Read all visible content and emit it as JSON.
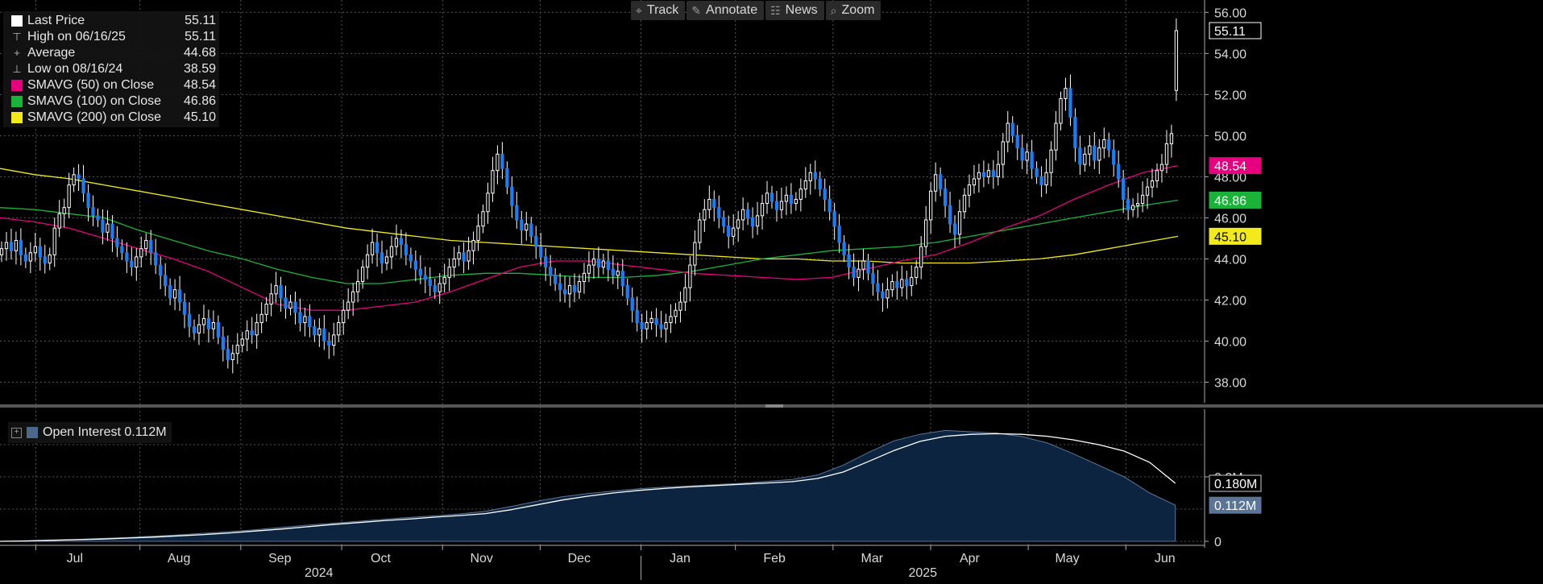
{
  "toolbar": {
    "buttons": [
      {
        "label": "Track",
        "icon": "crosshair-icon",
        "glyph": "⌖"
      },
      {
        "label": "Annotate",
        "icon": "pencil-icon",
        "glyph": "✎"
      },
      {
        "label": "News",
        "icon": "news-icon",
        "glyph": "☷"
      },
      {
        "label": "Zoom",
        "icon": "magnifier-icon",
        "glyph": "⌕"
      }
    ]
  },
  "legend": {
    "rows": [
      {
        "label": "Last Price",
        "value": "55.11",
        "color": "#ffffff",
        "kind": "box"
      },
      {
        "label": "High on 06/16/25",
        "value": "55.11",
        "color": "#bbbbbb",
        "kind": "glyph",
        "glyph": "⊤"
      },
      {
        "label": "Average",
        "value": "44.68",
        "color": "#bbbbbb",
        "kind": "glyph",
        "glyph": "+"
      },
      {
        "label": "Low on 08/16/24",
        "value": "38.59",
        "color": "#bbbbbb",
        "kind": "glyph",
        "glyph": "⊥"
      },
      {
        "label": "SMAVG (50)  on Close",
        "value": "48.54",
        "color": "#e6007e",
        "kind": "box"
      },
      {
        "label": "SMAVG (100)  on Close",
        "value": "46.86",
        "color": "#19b33a",
        "kind": "box"
      },
      {
        "label": "SMAVG (200)  on Close",
        "value": "45.10",
        "color": "#f2ea1a",
        "kind": "box"
      }
    ]
  },
  "lower_legend": {
    "label": "Open Interest 0.112M",
    "color": "#4a6a8c"
  },
  "chart_data": [
    {
      "type": "candlestick",
      "x_ticks": [
        "Jul",
        "Aug",
        "Sep",
        "Oct",
        "Nov",
        "Dec",
        "Jan",
        "Feb",
        "Mar",
        "Apr",
        "May",
        "Jun"
      ],
      "year_labels": [
        "2024",
        "2025"
      ],
      "ylim": [
        37,
        56.6
      ],
      "y_ticks": [
        "38.00",
        "40.00",
        "42.00",
        "44.00",
        "46.00",
        "48.00",
        "50.00",
        "52.00",
        "54.00",
        "56.00"
      ],
      "last_labels": [
        {
          "text": "55.11",
          "value": 55.11,
          "bg": "#000000",
          "fg": "#ffffff",
          "border": "#ffffff"
        },
        {
          "text": "48.54",
          "value": 48.54,
          "bg": "#e6007e",
          "fg": "#ffffff",
          "border": "#e6007e"
        },
        {
          "text": "46.86",
          "value": 46.86,
          "bg": "#19b33a",
          "fg": "#ffffff",
          "border": "#19b33a"
        },
        {
          "text": "45.10",
          "value": 45.1,
          "bg": "#f2ea1a",
          "fg": "#000000",
          "border": "#f2ea1a"
        }
      ],
      "closes": [
        44.5,
        44.8,
        44.4,
        44.9,
        44.2,
        43.9,
        44.3,
        44.6,
        44.1,
        43.8,
        44.2,
        45.5,
        46.2,
        46.5,
        47.6,
        48.1,
        47.9,
        47.2,
        46.5,
        46.1,
        45.9,
        45.3,
        45.7,
        45.0,
        44.6,
        44.3,
        43.9,
        43.6,
        44.1,
        44.5,
        44.9,
        44.3,
        43.7,
        43.2,
        42.7,
        42.1,
        42.5,
        41.9,
        41.3,
        40.7,
        40.4,
        40.8,
        41.1,
        40.6,
        40.9,
        40.2,
        39.6,
        39.1,
        39.4,
        39.8,
        40.1,
        40.5,
        40.3,
        40.9,
        41.3,
        41.8,
        42.3,
        42.7,
        42.1,
        41.6,
        41.9,
        41.4,
        40.9,
        41.2,
        40.7,
        40.3,
        40.6,
        40.0,
        39.8,
        40.3,
        40.9,
        41.5,
        41.9,
        42.4,
        42.9,
        43.6,
        44.2,
        44.8,
        44.3,
        43.8,
        44.1,
        44.6,
        45.0,
        44.7,
        44.2,
        43.9,
        43.5,
        43.2,
        43.0,
        42.7,
        42.4,
        42.8,
        43.1,
        43.6,
        44.0,
        44.3,
        43.9,
        44.4,
        44.9,
        45.6,
        46.3,
        47.2,
        48.3,
        49.1,
        48.4,
        47.5,
        46.6,
        45.9,
        45.4,
        45.7,
        45.1,
        44.6,
        44.1,
        43.6,
        43.2,
        42.8,
        42.5,
        42.3,
        42.7,
        42.4,
        42.9,
        43.3,
        43.7,
        44.0,
        43.6,
        43.9,
        43.5,
        43.2,
        43.4,
        42.7,
        42.1,
        41.5,
        40.9,
        40.6,
        40.9,
        41.1,
        40.8,
        40.6,
        40.9,
        41.2,
        41.5,
        41.9,
        42.6,
        43.7,
        44.8,
        45.9,
        46.4,
        46.9,
        46.5,
        46.0,
        45.6,
        45.1,
        45.5,
        45.9,
        46.4,
        46.0,
        45.6,
        46.1,
        46.7,
        47.2,
        46.8,
        46.4,
        46.8,
        47.1,
        46.7,
        46.9,
        47.4,
        47.8,
        48.2,
        47.9,
        47.4,
        46.9,
        46.3,
        45.6,
        44.8,
        44.2,
        43.6,
        43.1,
        43.5,
        43.9,
        43.3,
        42.8,
        42.4,
        42.1,
        42.5,
        42.9,
        42.6,
        43.0,
        42.7,
        43.1,
        43.6,
        44.6,
        45.9,
        47.3,
        48.1,
        47.4,
        46.6,
        45.7,
        45.2,
        46.3,
        47.1,
        47.6,
        47.9,
        48.2,
        48.0,
        48.3,
        48.0,
        48.6,
        49.7,
        50.6,
        50.0,
        49.4,
        48.8,
        49.2,
        48.4,
        48.0,
        47.6,
        48.2,
        49.3,
        50.6,
        51.8,
        52.3,
        50.9,
        49.4,
        48.6,
        49.1,
        49.5,
        48.8,
        49.4,
        49.8,
        49.3,
        48.6,
        47.9,
        46.9,
        46.4,
        46.6,
        46.7,
        47.1,
        47.5,
        47.8,
        48.3,
        48.6,
        49.6,
        50.1,
        55.11
      ],
      "sma50": [
        46.0,
        45.8,
        45.5,
        45.0,
        44.5,
        44.0,
        43.4,
        42.6,
        41.8,
        41.5,
        41.5,
        41.7,
        41.9,
        42.4,
        43.0,
        43.6,
        43.9,
        43.9,
        43.7,
        43.5,
        43.3,
        43.2,
        43.1,
        43.0,
        43.1,
        43.5,
        43.9,
        44.2,
        44.8,
        45.5,
        46.1,
        46.9,
        47.6,
        48.2,
        48.54
      ],
      "sma100": [
        46.5,
        46.4,
        46.2,
        46.0,
        45.4,
        44.9,
        44.4,
        44.0,
        43.5,
        43.1,
        42.8,
        42.8,
        43.0,
        43.2,
        43.3,
        43.3,
        43.2,
        43.1,
        43.1,
        43.2,
        43.4,
        43.7,
        44.0,
        44.2,
        44.4,
        44.5,
        44.6,
        44.8,
        45.1,
        45.4,
        45.7,
        46.0,
        46.3,
        46.6,
        46.86
      ],
      "sma200": [
        48.4,
        48.1,
        47.9,
        47.6,
        47.3,
        47.0,
        46.7,
        46.4,
        46.1,
        45.8,
        45.5,
        45.3,
        45.1,
        44.9,
        44.8,
        44.7,
        44.6,
        44.5,
        44.4,
        44.3,
        44.2,
        44.1,
        44.0,
        44.0,
        43.9,
        43.9,
        43.8,
        43.8,
        43.8,
        43.9,
        44.0,
        44.2,
        44.5,
        44.8,
        45.1
      ]
    },
    {
      "type": "area",
      "series_name": "Open Interest",
      "ylim": [
        -0.02,
        0.38
      ],
      "y_ticks": [
        {
          "text": "0",
          "value": 0
        },
        {
          "text": "0.2M",
          "value": 0.2
        }
      ],
      "last_labels": [
        {
          "text": "0.180M",
          "value": 0.18,
          "bg": "#000000",
          "fg": "#ffffff",
          "border": "#cccccc"
        },
        {
          "text": "0.112M",
          "value": 0.112,
          "bg": "#5a7596",
          "fg": "#ffffff",
          "border": "#5a7596"
        }
      ],
      "area": [
        0.0,
        0.002,
        0.004,
        0.006,
        0.009,
        0.012,
        0.016,
        0.02,
        0.025,
        0.03,
        0.036,
        0.043,
        0.05,
        0.056,
        0.062,
        0.068,
        0.074,
        0.079,
        0.085,
        0.093,
        0.108,
        0.124,
        0.138,
        0.148,
        0.156,
        0.163,
        0.168,
        0.172,
        0.176,
        0.18,
        0.186,
        0.192,
        0.206,
        0.236,
        0.276,
        0.312,
        0.332,
        0.344,
        0.34,
        0.336,
        0.325,
        0.305,
        0.272,
        0.236,
        0.2,
        0.15,
        0.112
      ],
      "line": [
        0.0,
        0.001,
        0.003,
        0.005,
        0.007,
        0.01,
        0.013,
        0.017,
        0.021,
        0.026,
        0.032,
        0.038,
        0.045,
        0.052,
        0.058,
        0.064,
        0.069,
        0.075,
        0.08,
        0.086,
        0.098,
        0.113,
        0.128,
        0.14,
        0.15,
        0.158,
        0.164,
        0.169,
        0.173,
        0.177,
        0.181,
        0.185,
        0.195,
        0.215,
        0.248,
        0.282,
        0.31,
        0.326,
        0.332,
        0.334,
        0.332,
        0.326,
        0.315,
        0.3,
        0.28,
        0.245,
        0.18
      ]
    }
  ]
}
